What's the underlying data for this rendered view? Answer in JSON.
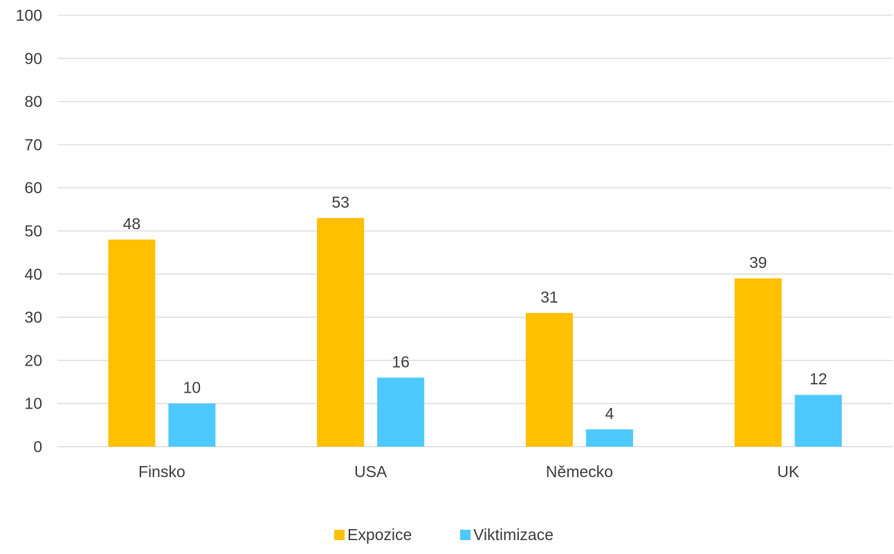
{
  "chart_data": {
    "type": "bar",
    "title": "",
    "xlabel": "",
    "ylabel": "",
    "categories": [
      "Finsko",
      "USA",
      "Německo",
      "UK"
    ],
    "series": [
      {
        "name": "Expozice",
        "values": [
          48,
          53,
          31,
          39
        ],
        "color": "#FFC000"
      },
      {
        "name": "Viktimizace",
        "values": [
          10,
          16,
          4,
          12
        ],
        "color": "#4DC9FF"
      }
    ],
    "ylim": [
      0,
      100
    ],
    "yticks": [
      0,
      10,
      20,
      30,
      40,
      50,
      60,
      70,
      80,
      90,
      100
    ],
    "grid": true,
    "legend_position": "bottom",
    "colors": {
      "gridline": "#D9D9D9",
      "text": "#404040"
    }
  }
}
